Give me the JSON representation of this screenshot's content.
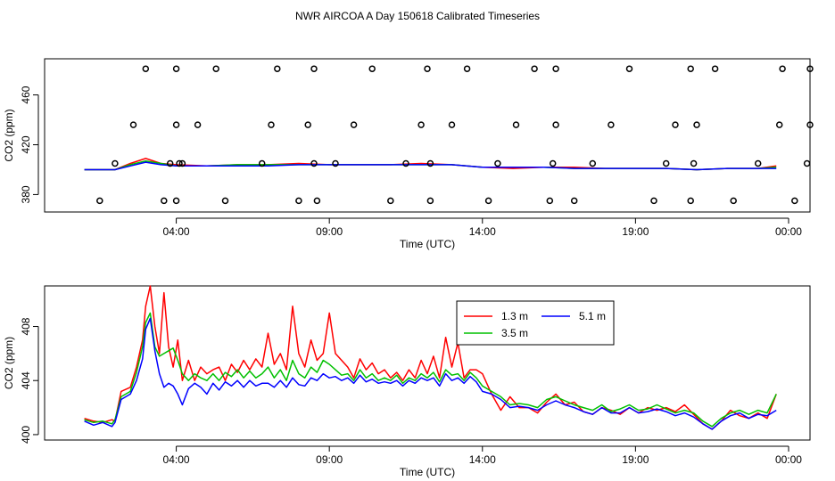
{
  "title": "NWR AIRCOA A  Day 150618  Calibrated Timeseries",
  "chart_data": [
    {
      "type": "line",
      "name": "top",
      "xlabel": "Time (UTC)",
      "ylabel": "CO2 (ppm)",
      "xlim": [
        -1.3,
        23.7
      ],
      "ylim": [
        366,
        489
      ],
      "xticks": [
        3,
        8,
        13,
        18,
        23
      ],
      "xtick_labels": [
        "04:00",
        "09:00",
        "14:00",
        "19:00",
        "00:00"
      ],
      "yticks": [
        380,
        420,
        460
      ],
      "ytick_labels": [
        "380",
        "420",
        "460"
      ],
      "series": [
        {
          "name": "1.3 m",
          "color": "#ff0000",
          "x": [
            0,
            1,
            1.5,
            2,
            2.5,
            3,
            4,
            5,
            6,
            7,
            8,
            9,
            10,
            11,
            12,
            13,
            14,
            15,
            16,
            17,
            18,
            19,
            20,
            21,
            22,
            22.6
          ],
          "y": [
            400,
            400,
            405,
            409,
            405,
            404,
            403,
            404,
            404,
            405,
            404,
            404,
            404,
            405,
            404,
            402,
            401,
            402,
            402,
            401,
            401,
            401,
            400,
            401,
            401,
            403
          ]
        },
        {
          "name": "3.5 m",
          "color": "#00c000",
          "x": [
            0,
            1,
            1.5,
            2,
            2.5,
            3,
            4,
            5,
            6,
            7,
            8,
            9,
            10,
            11,
            12,
            13,
            14,
            15,
            16,
            17,
            18,
            19,
            20,
            21,
            22,
            22.6
          ],
          "y": [
            400,
            400,
            404,
            407,
            405,
            403,
            403,
            404,
            404,
            404,
            404,
            404,
            404,
            404,
            404,
            402,
            402,
            402,
            401,
            401,
            401,
            401,
            400,
            401,
            401,
            402
          ]
        },
        {
          "name": "5.1 m",
          "color": "#0000ff",
          "x": [
            0,
            1,
            1.5,
            2,
            2.5,
            3,
            4,
            5,
            6,
            7,
            8,
            9,
            10,
            11,
            12,
            13,
            14,
            15,
            16,
            17,
            18,
            19,
            20,
            21,
            22,
            22.6
          ],
          "y": [
            400,
            400,
            403,
            406,
            404,
            403,
            403,
            403,
            403,
            404,
            404,
            404,
            404,
            404,
            404,
            402,
            402,
            402,
            401,
            401,
            401,
            401,
            400,
            401,
            401,
            401
          ]
        }
      ],
      "points": {
        "x": [
          0.5,
          1.0,
          1.6,
          2.0,
          2.6,
          2.8,
          3.0,
          3.0,
          3.0,
          3.1,
          3.2,
          3.7,
          4.3,
          4.6,
          5.8,
          6.1,
          6.3,
          7.0,
          7.3,
          7.5,
          7.5,
          7.6,
          8.2,
          8.8,
          9.4,
          10.0,
          10.5,
          11.0,
          11.2,
          11.3,
          11.3,
          12.0,
          12.5,
          13.2,
          13.5,
          14.1,
          14.7,
          15.2,
          15.3,
          15.4,
          15.4,
          16.0,
          16.6,
          17.2,
          17.8,
          18.6,
          19.0,
          19.3,
          19.8,
          19.8,
          19.9,
          20.0,
          20.6,
          21.2,
          22.0,
          22.7,
          22.8,
          23.2,
          23.6,
          23.7,
          23.7
        ],
        "y": [
          375,
          405,
          436,
          481,
          375,
          405,
          375,
          436,
          481,
          405,
          405,
          436,
          481,
          375,
          405,
          436,
          481,
          375,
          436,
          405,
          481,
          375,
          405,
          436,
          481,
          375,
          405,
          436,
          481,
          375,
          405,
          436,
          481,
          375,
          405,
          436,
          481,
          375,
          405,
          436,
          481,
          375,
          405,
          436,
          481,
          375,
          405,
          436,
          481,
          375,
          405,
          436,
          481,
          375,
          405,
          436,
          481,
          375,
          405,
          436,
          481
        ]
      }
    },
    {
      "type": "line",
      "name": "bottom",
      "xlabel": "Time (UTC)",
      "ylabel": "CO2 (ppm)",
      "xlim": [
        -1.3,
        23.7
      ],
      "ylim": [
        399.6,
        411.0
      ],
      "xticks": [
        3,
        8,
        13,
        18,
        23
      ],
      "xtick_labels": [
        "04:00",
        "09:00",
        "14:00",
        "19:00",
        "00:00"
      ],
      "yticks": [
        400,
        404,
        408
      ],
      "ytick_labels": [
        "400",
        "404",
        "408"
      ],
      "legend": {
        "position": "top-center",
        "entries": [
          "1.3 m",
          "3.5 m",
          "5.1 m"
        ]
      },
      "series": [
        {
          "name": "1.3 m",
          "color": "#ff0000",
          "x": [
            0,
            0.3,
            0.6,
            0.9,
            1.0,
            1.2,
            1.5,
            1.7,
            1.9,
            2.0,
            2.15,
            2.3,
            2.45,
            2.6,
            2.75,
            2.9,
            3.05,
            3.2,
            3.4,
            3.6,
            3.8,
            4.0,
            4.2,
            4.4,
            4.6,
            4.8,
            5.0,
            5.2,
            5.4,
            5.6,
            5.8,
            6.0,
            6.2,
            6.4,
            6.6,
            6.8,
            7.0,
            7.2,
            7.4,
            7.6,
            7.8,
            8.0,
            8.2,
            8.4,
            8.6,
            8.8,
            9.0,
            9.2,
            9.4,
            9.6,
            9.8,
            10.0,
            10.2,
            10.4,
            10.6,
            10.8,
            11.0,
            11.2,
            11.4,
            11.6,
            11.8,
            12.0,
            12.2,
            12.4,
            12.6,
            12.8,
            13.0,
            13.3,
            13.6,
            13.9,
            14.2,
            14.5,
            14.8,
            15.1,
            15.4,
            15.7,
            16.0,
            16.3,
            16.6,
            16.9,
            17.2,
            17.5,
            17.8,
            18.1,
            18.4,
            18.7,
            19.0,
            19.3,
            19.6,
            19.9,
            20.2,
            20.5,
            20.8,
            21.1,
            21.4,
            21.7,
            22.0,
            22.3,
            22.6
          ],
          "y": [
            401.2,
            401.0,
            400.9,
            401.1,
            401.0,
            403.2,
            403.5,
            405.0,
            407.0,
            409.5,
            411.0,
            408.0,
            406.0,
            410.5,
            406.5,
            405.0,
            407.0,
            404.0,
            405.5,
            404.0,
            405.0,
            404.5,
            404.8,
            405.0,
            404.0,
            405.2,
            404.6,
            405.5,
            404.8,
            405.6,
            405.0,
            407.5,
            405.2,
            406.0,
            404.8,
            409.5,
            406.0,
            405.0,
            407.0,
            405.5,
            406.0,
            409.0,
            406.0,
            405.5,
            405.0,
            404.2,
            405.6,
            404.8,
            405.3,
            404.5,
            404.8,
            404.2,
            404.6,
            404.0,
            404.8,
            404.2,
            405.5,
            404.5,
            405.8,
            404.2,
            407.2,
            405.0,
            406.8,
            404.2,
            404.8,
            404.8,
            404.5,
            403.0,
            401.8,
            402.8,
            402.0,
            402.0,
            401.6,
            402.4,
            403.0,
            402.2,
            402.4,
            401.7,
            401.5,
            402.0,
            401.8,
            401.5,
            402.0,
            401.6,
            402.0,
            401.8,
            402.0,
            401.7,
            402.2,
            401.5,
            400.8,
            400.4,
            401.0,
            401.8,
            401.4,
            401.2,
            401.6,
            401.2,
            403.0
          ]
        },
        {
          "name": "3.5 m",
          "color": "#00c000",
          "x": [
            0,
            0.3,
            0.6,
            0.9,
            1.0,
            1.2,
            1.5,
            1.7,
            1.9,
            2.0,
            2.15,
            2.3,
            2.45,
            2.6,
            2.75,
            2.9,
            3.05,
            3.2,
            3.4,
            3.6,
            3.8,
            4.0,
            4.2,
            4.4,
            4.6,
            4.8,
            5.0,
            5.2,
            5.4,
            5.6,
            5.8,
            6.0,
            6.2,
            6.4,
            6.6,
            6.8,
            7.0,
            7.2,
            7.4,
            7.6,
            7.8,
            8.0,
            8.2,
            8.4,
            8.6,
            8.8,
            9.0,
            9.2,
            9.4,
            9.6,
            9.8,
            10.0,
            10.2,
            10.4,
            10.6,
            10.8,
            11.0,
            11.2,
            11.4,
            11.6,
            11.8,
            12.0,
            12.2,
            12.4,
            12.6,
            12.8,
            13.0,
            13.3,
            13.6,
            13.9,
            14.2,
            14.5,
            14.8,
            15.1,
            15.4,
            15.7,
            16.0,
            16.3,
            16.6,
            16.9,
            17.2,
            17.5,
            17.8,
            18.1,
            18.4,
            18.7,
            19.0,
            19.3,
            19.6,
            19.9,
            20.2,
            20.5,
            20.8,
            21.1,
            21.4,
            21.7,
            22.0,
            22.3,
            22.6
          ],
          "y": [
            401.1,
            400.9,
            401.0,
            400.8,
            401.1,
            402.8,
            403.2,
            404.6,
            406.5,
            408.3,
            409.0,
            406.5,
            405.8,
            406.0,
            406.2,
            406.4,
            405.5,
            404.5,
            404.0,
            404.5,
            404.2,
            404.0,
            404.5,
            404.0,
            404.6,
            404.3,
            404.8,
            404.2,
            404.7,
            404.2,
            404.5,
            405.0,
            404.2,
            404.8,
            404.0,
            405.5,
            404.5,
            404.2,
            405.0,
            404.6,
            405.5,
            405.2,
            404.8,
            404.4,
            404.5,
            404.0,
            404.8,
            404.2,
            404.5,
            404.0,
            404.2,
            404.0,
            404.4,
            403.8,
            404.2,
            404.0,
            404.5,
            404.2,
            404.6,
            403.9,
            404.8,
            404.4,
            404.5,
            404.0,
            404.6,
            404.2,
            403.6,
            403.2,
            402.8,
            402.2,
            402.3,
            402.2,
            402.0,
            402.6,
            402.8,
            402.5,
            402.2,
            402.0,
            401.8,
            402.2,
            401.7,
            401.9,
            402.2,
            401.8,
            401.9,
            402.2,
            401.9,
            401.6,
            401.8,
            401.6,
            401.0,
            400.6,
            401.2,
            401.6,
            401.8,
            401.5,
            401.8,
            401.6,
            403.0
          ]
        },
        {
          "name": "5.1 m",
          "color": "#0000ff",
          "x": [
            0,
            0.3,
            0.6,
            0.9,
            1.0,
            1.2,
            1.5,
            1.7,
            1.9,
            2.0,
            2.15,
            2.3,
            2.45,
            2.6,
            2.75,
            2.9,
            3.05,
            3.2,
            3.4,
            3.6,
            3.8,
            4.0,
            4.2,
            4.4,
            4.6,
            4.8,
            5.0,
            5.2,
            5.4,
            5.6,
            5.8,
            6.0,
            6.2,
            6.4,
            6.6,
            6.8,
            7.0,
            7.2,
            7.4,
            7.6,
            7.8,
            8.0,
            8.2,
            8.4,
            8.6,
            8.8,
            9.0,
            9.2,
            9.4,
            9.6,
            9.8,
            10.0,
            10.2,
            10.4,
            10.6,
            10.8,
            11.0,
            11.2,
            11.4,
            11.6,
            11.8,
            12.0,
            12.2,
            12.4,
            12.6,
            12.8,
            13.0,
            13.3,
            13.6,
            13.9,
            14.2,
            14.5,
            14.8,
            15.1,
            15.4,
            15.7,
            16.0,
            16.3,
            16.6,
            16.9,
            17.2,
            17.5,
            17.8,
            18.1,
            18.4,
            18.7,
            19.0,
            19.3,
            19.6,
            19.9,
            20.2,
            20.5,
            20.8,
            21.1,
            21.4,
            21.7,
            22.0,
            22.3,
            22.6
          ],
          "y": [
            401.0,
            400.7,
            400.9,
            400.6,
            400.9,
            402.6,
            403.0,
            404.0,
            405.6,
            407.8,
            408.6,
            406.2,
            404.5,
            403.5,
            403.8,
            403.6,
            403.0,
            402.2,
            403.4,
            403.8,
            403.5,
            403.0,
            403.8,
            403.3,
            403.9,
            403.6,
            404.0,
            403.5,
            404.0,
            403.6,
            403.8,
            403.8,
            403.5,
            404.0,
            403.5,
            404.2,
            403.7,
            403.6,
            404.2,
            404.0,
            404.5,
            404.2,
            404.3,
            404.0,
            404.2,
            403.8,
            404.4,
            403.9,
            404.1,
            403.8,
            403.9,
            403.8,
            404.0,
            403.6,
            404.0,
            403.8,
            404.2,
            404.0,
            404.2,
            403.6,
            404.5,
            404.0,
            404.2,
            403.8,
            404.3,
            403.9,
            403.2,
            403.0,
            402.6,
            402.0,
            402.1,
            402.0,
            401.8,
            402.2,
            402.5,
            402.2,
            402.0,
            401.7,
            401.5,
            402.0,
            401.6,
            401.6,
            402.0,
            401.6,
            401.7,
            401.9,
            401.7,
            401.4,
            401.6,
            401.3,
            400.8,
            400.4,
            401.0,
            401.4,
            401.6,
            401.2,
            401.5,
            401.4,
            401.8
          ]
        }
      ]
    }
  ]
}
